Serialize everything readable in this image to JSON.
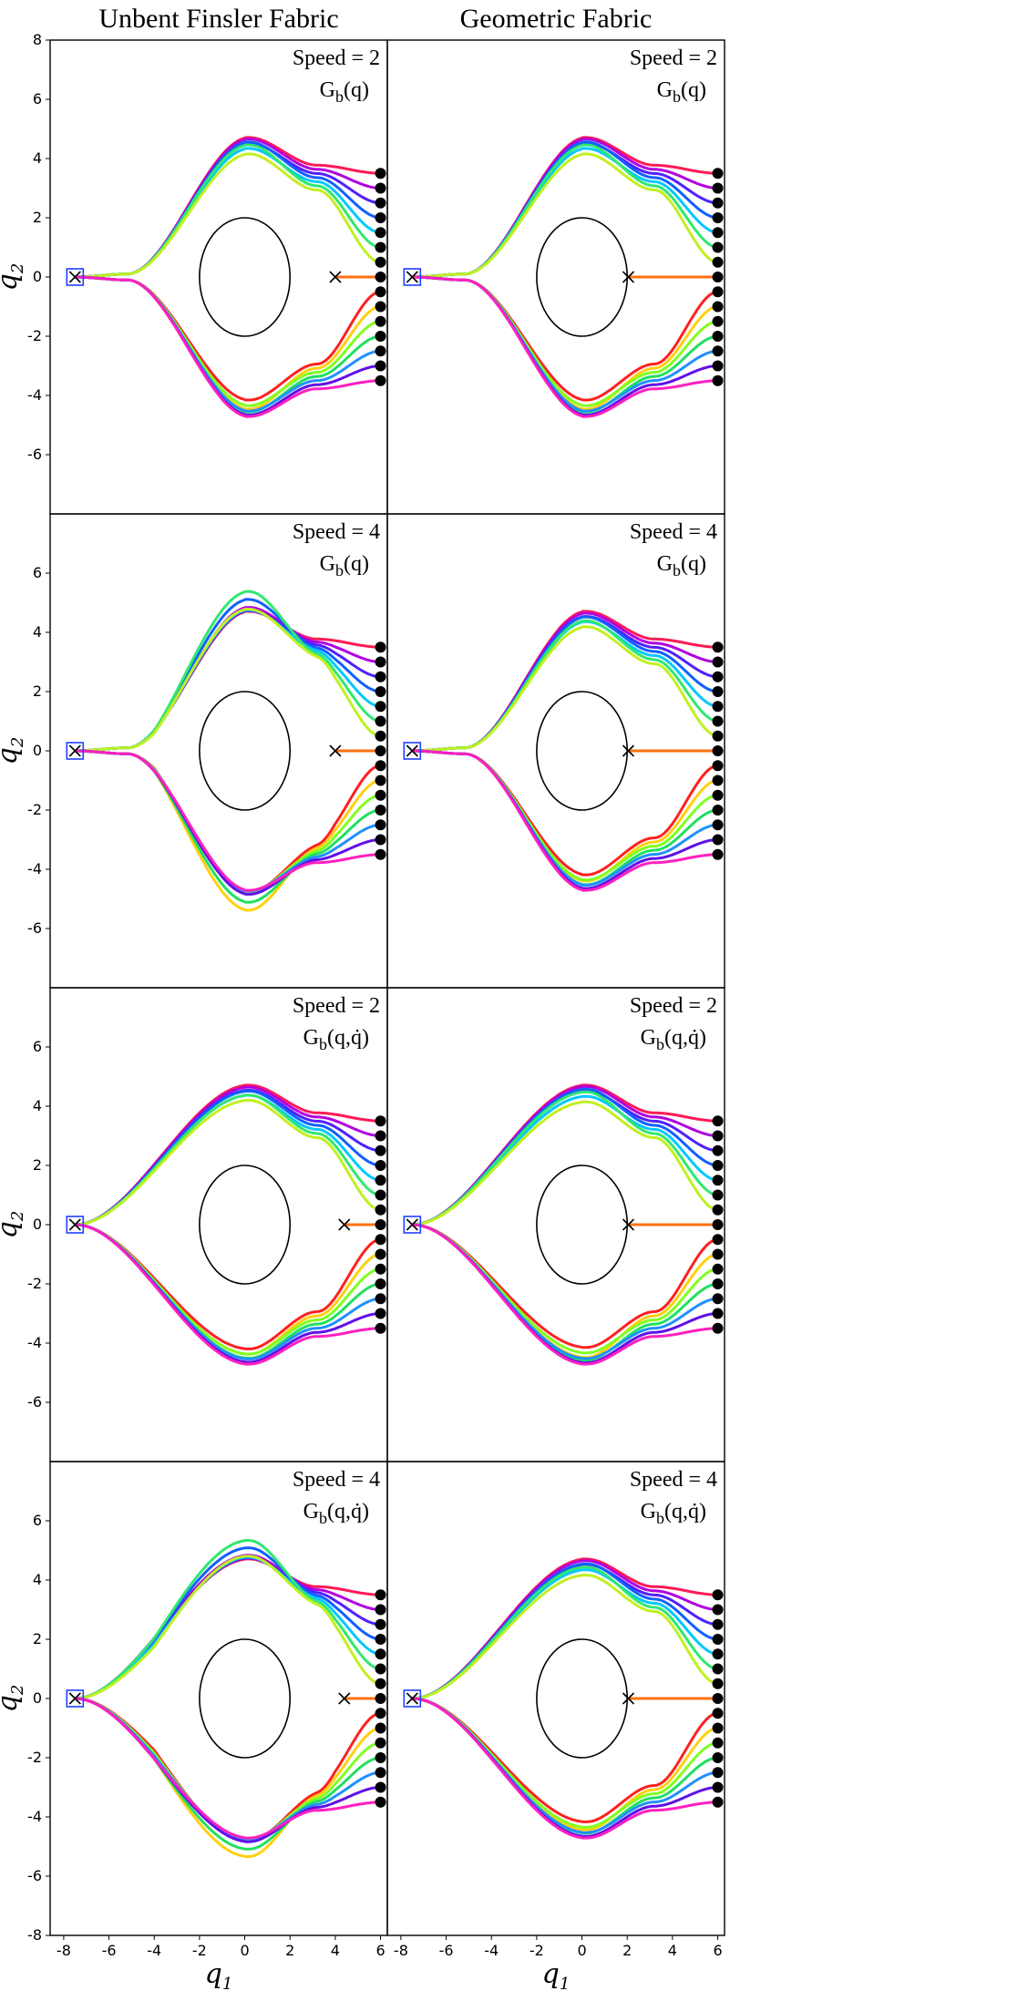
{
  "chart_data": {
    "type": "line",
    "column_titles": [
      "Unbent Finsler Fabric",
      "Geometric Fabric"
    ],
    "xlabel": "q",
    "xlabel_sub": "1",
    "ylabel": "q",
    "ylabel_sub": "2",
    "xlim": [
      -8.6,
      6.3
    ],
    "ylim": [
      -8,
      8
    ],
    "xticks": [
      -8,
      -6,
      -4,
      -2,
      0,
      2,
      4,
      6
    ],
    "yticks_top": [
      -6,
      -4,
      -2,
      0,
      2,
      4,
      6,
      8
    ],
    "yticks_other": [
      -6,
      -4,
      -2,
      0,
      2,
      4,
      6
    ],
    "yticks_bottom": [
      -8,
      -6,
      -4,
      -2,
      0,
      2,
      4,
      6
    ],
    "obstacle": {
      "center": [
        0,
        0
      ],
      "radius": 2
    },
    "goal": [
      -7.5,
      0
    ],
    "start_x": 6,
    "start_y": [
      3.5,
      3.0,
      2.5,
      2.0,
      1.5,
      1.0,
      0.5,
      0.0,
      -0.5,
      -1.0,
      -1.5,
      -2.0,
      -2.5,
      -3.0,
      -3.5
    ],
    "series_colors": [
      "#ff1a55",
      "#b000e0",
      "#5020ff",
      "#1060ff",
      "#00c8ff",
      "#30e870",
      "#c0f020",
      "#ff7010",
      "#ff2020",
      "#ffd010",
      "#80ff20",
      "#20e060",
      "#2090ff",
      "#6010e8",
      "#ff20c0"
    ],
    "panels": [
      {
        "row": 0,
        "col": 0,
        "speed_label": "Speed = 2",
        "g_main": "G",
        "g_sub": "b",
        "g_arg": "(q)",
        "vel_dep": false,
        "spread": 0.35,
        "wobble": 0.0,
        "cross": [
          4.0,
          0
        ]
      },
      {
        "row": 0,
        "col": 1,
        "speed_label": "Speed = 2",
        "g_main": "G",
        "g_sub": "b",
        "g_arg": "(q)",
        "vel_dep": false,
        "spread": 0.35,
        "wobble": 0.0,
        "cross": [
          2.05,
          0
        ]
      },
      {
        "row": 1,
        "col": 0,
        "speed_label": "Speed = 4",
        "g_main": "G",
        "g_sub": "b",
        "g_arg": "(q)",
        "vel_dep": false,
        "spread": 1.0,
        "wobble": 1.0,
        "cross": [
          4.0,
          0
        ]
      },
      {
        "row": 1,
        "col": 1,
        "speed_label": "Speed = 4",
        "g_main": "G",
        "g_sub": "b",
        "g_arg": "(q)",
        "vel_dep": false,
        "spread": 0.2,
        "wobble": 0.0,
        "cross": [
          2.05,
          0
        ]
      },
      {
        "row": 2,
        "col": 0,
        "speed_label": "Speed = 2",
        "g_main": "G",
        "g_sub": "b",
        "g_arg": "(q,q̇)",
        "vel_dep": true,
        "spread": 0.15,
        "wobble": 0.0,
        "cross": [
          4.4,
          0
        ]
      },
      {
        "row": 2,
        "col": 1,
        "speed_label": "Speed = 2",
        "g_main": "G",
        "g_sub": "b",
        "g_arg": "(q,q̇)",
        "vel_dep": true,
        "spread": 0.4,
        "wobble": 0.0,
        "cross": [
          2.05,
          0
        ]
      },
      {
        "row": 3,
        "col": 0,
        "speed_label": "Speed = 4",
        "g_main": "G",
        "g_sub": "b",
        "g_arg": "(q,q̇)",
        "vel_dep": true,
        "spread": 0.9,
        "wobble": 1.0,
        "cross": [
          4.4,
          0
        ]
      },
      {
        "row": 3,
        "col": 1,
        "speed_label": "Speed = 4",
        "g_main": "G",
        "g_sub": "b",
        "g_arg": "(q,q̇)",
        "vel_dep": true,
        "spread": 0.3,
        "wobble": 0.0,
        "cross": [
          2.05,
          0
        ]
      }
    ]
  }
}
